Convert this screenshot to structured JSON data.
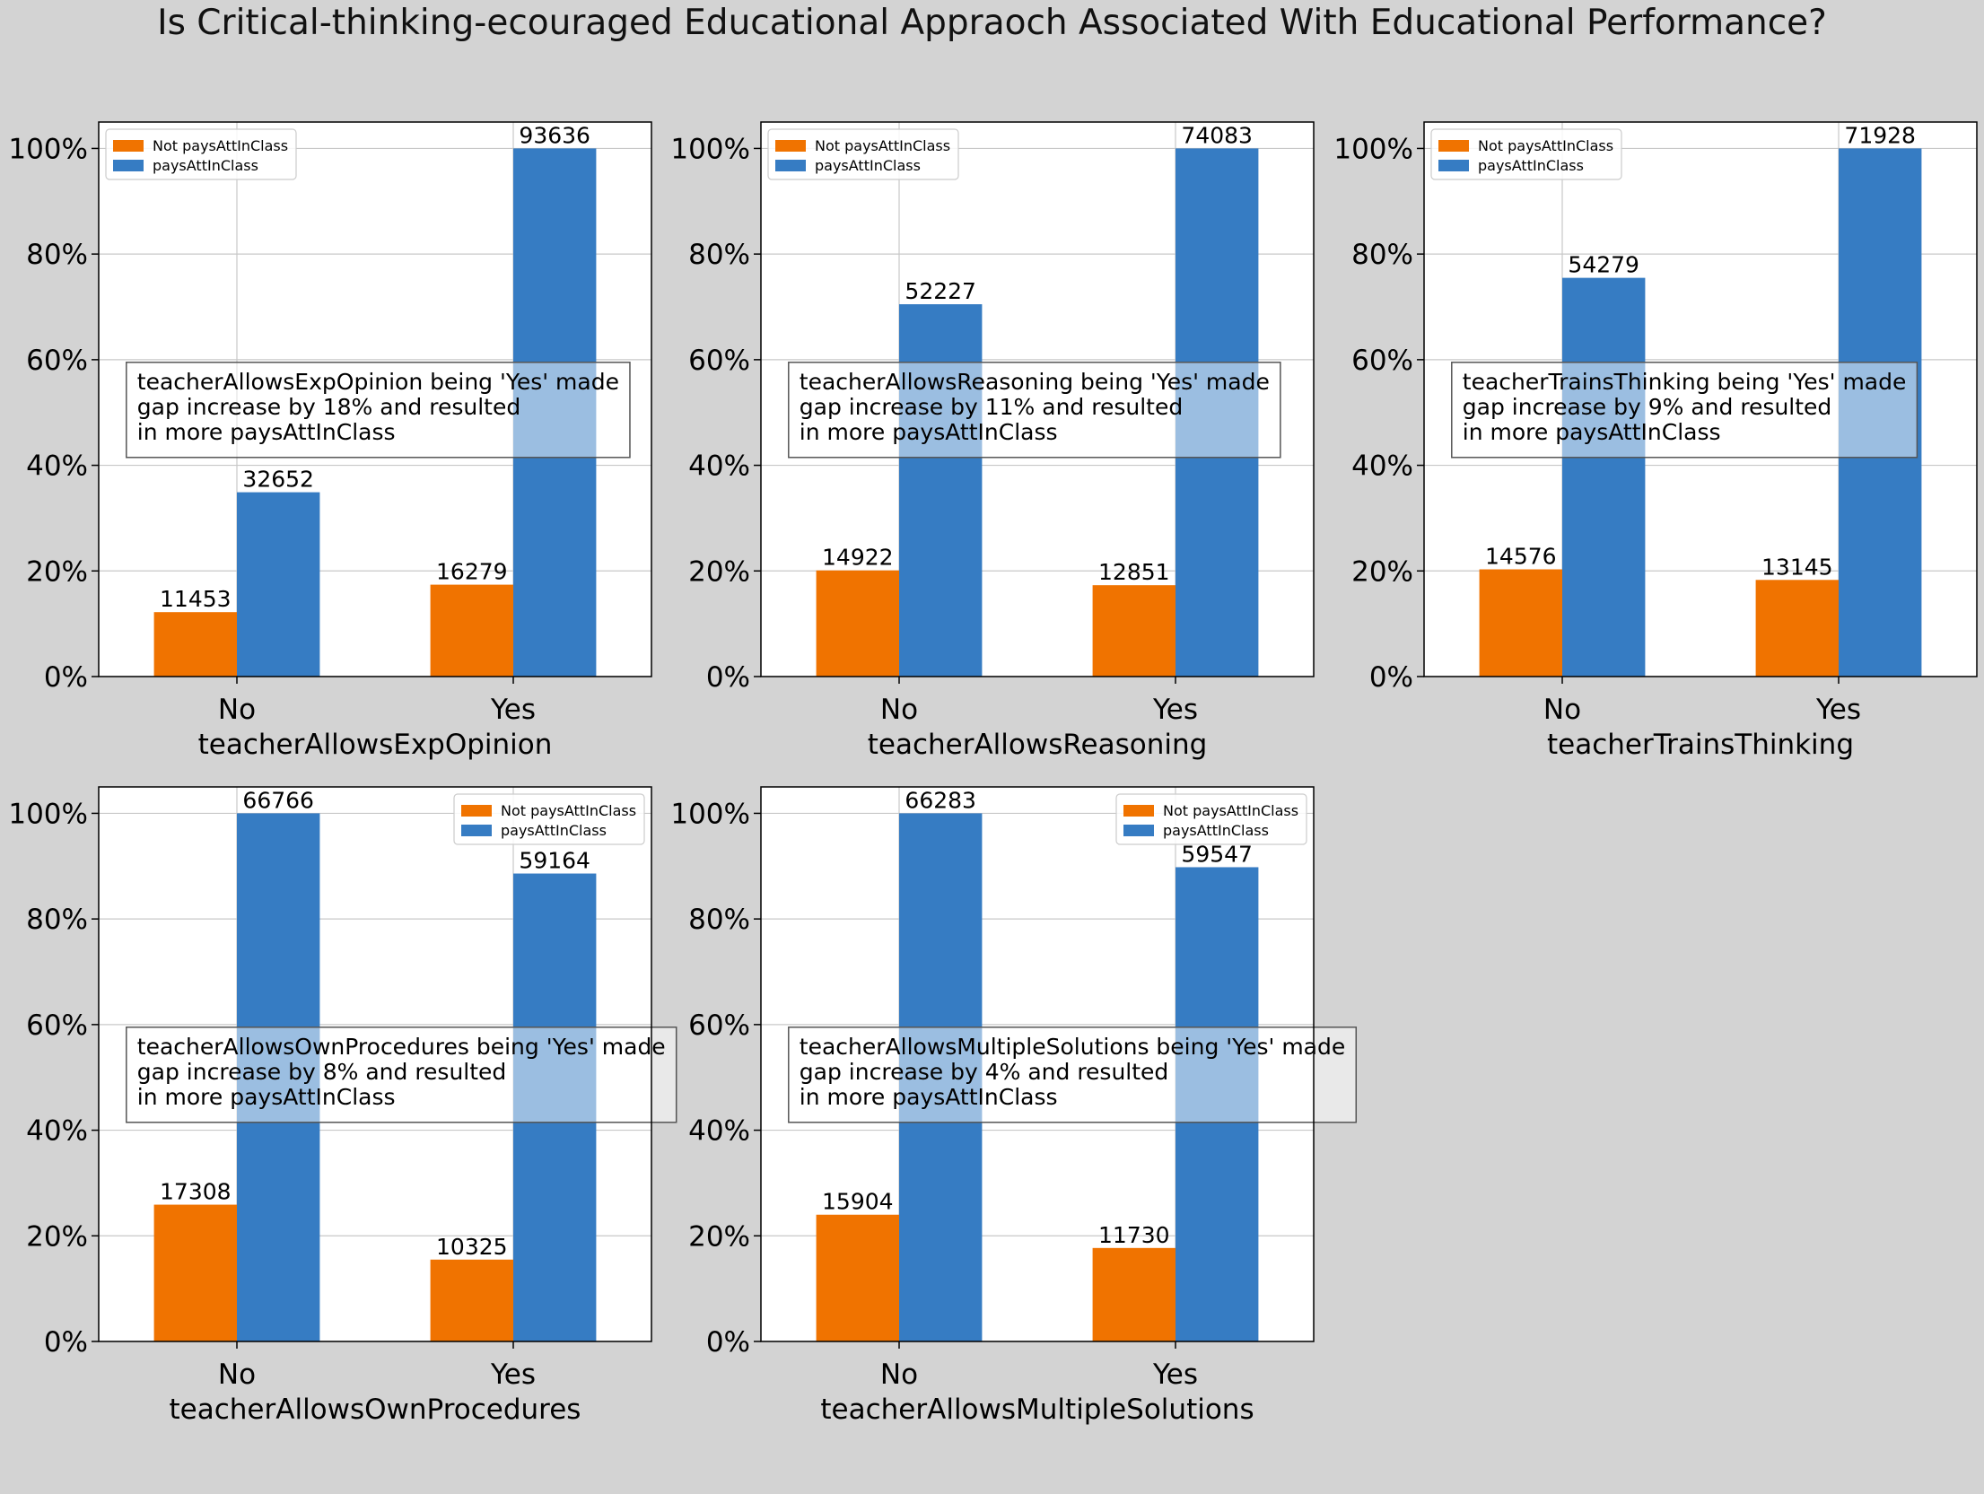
{
  "suptitle": "Is Critical-thinking-ecouraged Educational Appraoch Associated With Educational Performance?",
  "colors": {
    "not_pays": "#f07300",
    "pays": "#367cc3"
  },
  "chart_data": [
    {
      "type": "bar",
      "xlabel": "teacherAllowsExpOpinion",
      "categories": [
        "No",
        "Yes"
      ],
      "series": [
        {
          "name": "Not paysAttInClass",
          "values": [
            12.2,
            17.4
          ],
          "labels": [
            "11453",
            "16279"
          ]
        },
        {
          "name": "paysAttInClass",
          "values": [
            34.9,
            100
          ],
          "labels": [
            "32652",
            "93636"
          ]
        }
      ],
      "ylim": [
        0,
        105
      ],
      "yticks": [
        "0%",
        "20%",
        "40%",
        "60%",
        "80%",
        "100%"
      ],
      "annotation": [
        "teacherAllowsExpOpinion being 'Yes' made",
        "gap increase by 18% and resulted",
        "in more paysAttInClass"
      ],
      "legend": "upper-left",
      "grid": true
    },
    {
      "type": "bar",
      "xlabel": "teacherAllowsReasoning",
      "categories": [
        "No",
        "Yes"
      ],
      "series": [
        {
          "name": "Not paysAttInClass",
          "values": [
            20.1,
            17.3
          ],
          "labels": [
            "14922",
            "12851"
          ]
        },
        {
          "name": "paysAttInClass",
          "values": [
            70.5,
            100
          ],
          "labels": [
            "52227",
            "74083"
          ]
        }
      ],
      "ylim": [
        0,
        105
      ],
      "yticks": [
        "0%",
        "20%",
        "40%",
        "60%",
        "80%",
        "100%"
      ],
      "annotation": [
        "teacherAllowsReasoning being 'Yes' made",
        "gap increase by 11% and resulted",
        "in more paysAttInClass"
      ],
      "legend": "upper-left",
      "grid": true
    },
    {
      "type": "bar",
      "xlabel": "teacherTrainsThinking",
      "categories": [
        "No",
        "Yes"
      ],
      "series": [
        {
          "name": "Not paysAttInClass",
          "values": [
            20.3,
            18.3
          ],
          "labels": [
            "14576",
            "13145"
          ]
        },
        {
          "name": "paysAttInClass",
          "values": [
            75.5,
            100
          ],
          "labels": [
            "54279",
            "71928"
          ]
        }
      ],
      "ylim": [
        0,
        105
      ],
      "yticks": [
        "0%",
        "20%",
        "40%",
        "60%",
        "80%",
        "100%"
      ],
      "annotation": [
        "teacherTrainsThinking being 'Yes' made",
        "gap increase by 9% and resulted",
        "in more paysAttInClass"
      ],
      "legend": "upper-left",
      "grid": true
    },
    {
      "type": "bar",
      "xlabel": "teacherAllowsOwnProcedures",
      "categories": [
        "No",
        "Yes"
      ],
      "series": [
        {
          "name": "Not paysAttInClass",
          "values": [
            25.9,
            15.5
          ],
          "labels": [
            "17308",
            "10325"
          ]
        },
        {
          "name": "paysAttInClass",
          "values": [
            100,
            88.6
          ],
          "labels": [
            "66766",
            "59164"
          ]
        }
      ],
      "ylim": [
        0,
        105
      ],
      "yticks": [
        "0%",
        "20%",
        "40%",
        "60%",
        "80%",
        "100%"
      ],
      "annotation": [
        "teacherAllowsOwnProcedures being 'Yes' made",
        "gap increase by 8% and resulted",
        "in more paysAttInClass"
      ],
      "legend": "upper-right",
      "grid": true
    },
    {
      "type": "bar",
      "xlabel": "teacherAllowsMultipleSolutions",
      "categories": [
        "No",
        "Yes"
      ],
      "series": [
        {
          "name": "Not paysAttInClass",
          "values": [
            24.0,
            17.7
          ],
          "labels": [
            "15904",
            "11730"
          ]
        },
        {
          "name": "paysAttInClass",
          "values": [
            100,
            89.8
          ],
          "labels": [
            "66283",
            "59547"
          ]
        }
      ],
      "ylim": [
        0,
        105
      ],
      "yticks": [
        "0%",
        "20%",
        "40%",
        "60%",
        "80%",
        "100%"
      ],
      "annotation": [
        "teacherAllowsMultipleSolutions being 'Yes' made",
        "gap increase by 4% and resulted",
        "in more paysAttInClass"
      ],
      "legend": "upper-right",
      "grid": true
    }
  ]
}
